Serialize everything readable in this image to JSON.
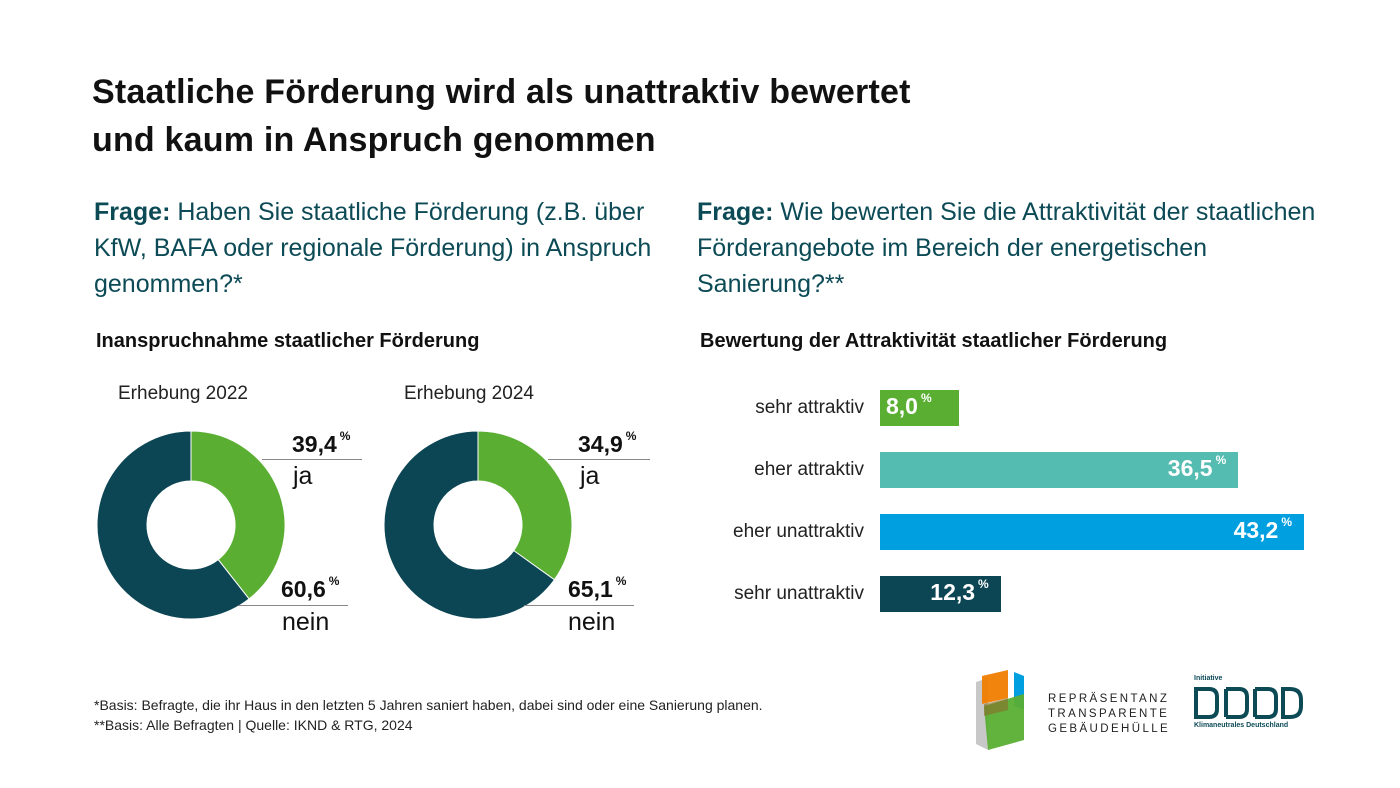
{
  "title": {
    "line1": "Staatliche Förderung wird als unattraktiv bewertet",
    "line2": "und kaum in Anspruch genommen"
  },
  "left_question": {
    "prefix": "Frage:",
    "text": " Haben Sie staatliche Förderung (z.B. über KfW, BAFA oder regionale Förderung) in Anspruch genommen?*"
  },
  "right_question": {
    "prefix": "Frage:",
    "text": " Wie bewerten Sie die Attraktivität der staatlichen Förderangebote im Bereich der energetischen Sanierung?**"
  },
  "colors": {
    "green": "#5aaf33",
    "dark_teal": "#0c4654",
    "teal": "#55bcb2",
    "blue": "#00a0e0"
  },
  "chart_data": [
    {
      "type": "pie",
      "title": "Inanspruchnahme staatlicher Förderung",
      "subtitle": "Erhebung 2022",
      "categories": [
        "ja",
        "nein"
      ],
      "values": [
        39.4,
        60.6
      ],
      "value_labels": [
        "39,4",
        "60,6"
      ],
      "unit": "%",
      "colors": [
        "#5aaf33",
        "#0c4654"
      ]
    },
    {
      "type": "pie",
      "title": "Inanspruchnahme staatlicher Förderung",
      "subtitle": "Erhebung 2024",
      "categories": [
        "ja",
        "nein"
      ],
      "values": [
        34.9,
        65.1
      ],
      "value_labels": [
        "34,9",
        "65,1"
      ],
      "unit": "%",
      "colors": [
        "#5aaf33",
        "#0c4654"
      ]
    },
    {
      "type": "bar",
      "orientation": "horizontal",
      "title": "Bewertung der Attraktivität staatlicher Förderung",
      "categories": [
        "sehr attraktiv",
        "eher attraktiv",
        "eher unattraktiv",
        "sehr unattraktiv"
      ],
      "values": [
        8.0,
        36.5,
        43.2,
        12.3
      ],
      "value_labels": [
        "8,0",
        "36,5",
        "43,2",
        "12,3"
      ],
      "unit": "%",
      "colors": [
        "#5aaf33",
        "#55bcb2",
        "#00a0e0",
        "#0c4654"
      ],
      "xlim": [
        0,
        43.2
      ]
    }
  ],
  "footnotes": {
    "line1": "*Basis: Befragte, die ihr Haus in den letzten 5 Jahren saniert haben, dabei sind oder eine Sanierung planen.",
    "line2": "**Basis: Alle Befragten | Quelle: IKND & RTG, 2024"
  },
  "logos": {
    "rtg": [
      "REPRÄSENTANZ",
      "TRANSPARENTE",
      "GEBÄUDEHÜLLE"
    ],
    "iknd_top": "Initiative",
    "iknd_bottom": "Klimaneutrales Deutschland"
  }
}
